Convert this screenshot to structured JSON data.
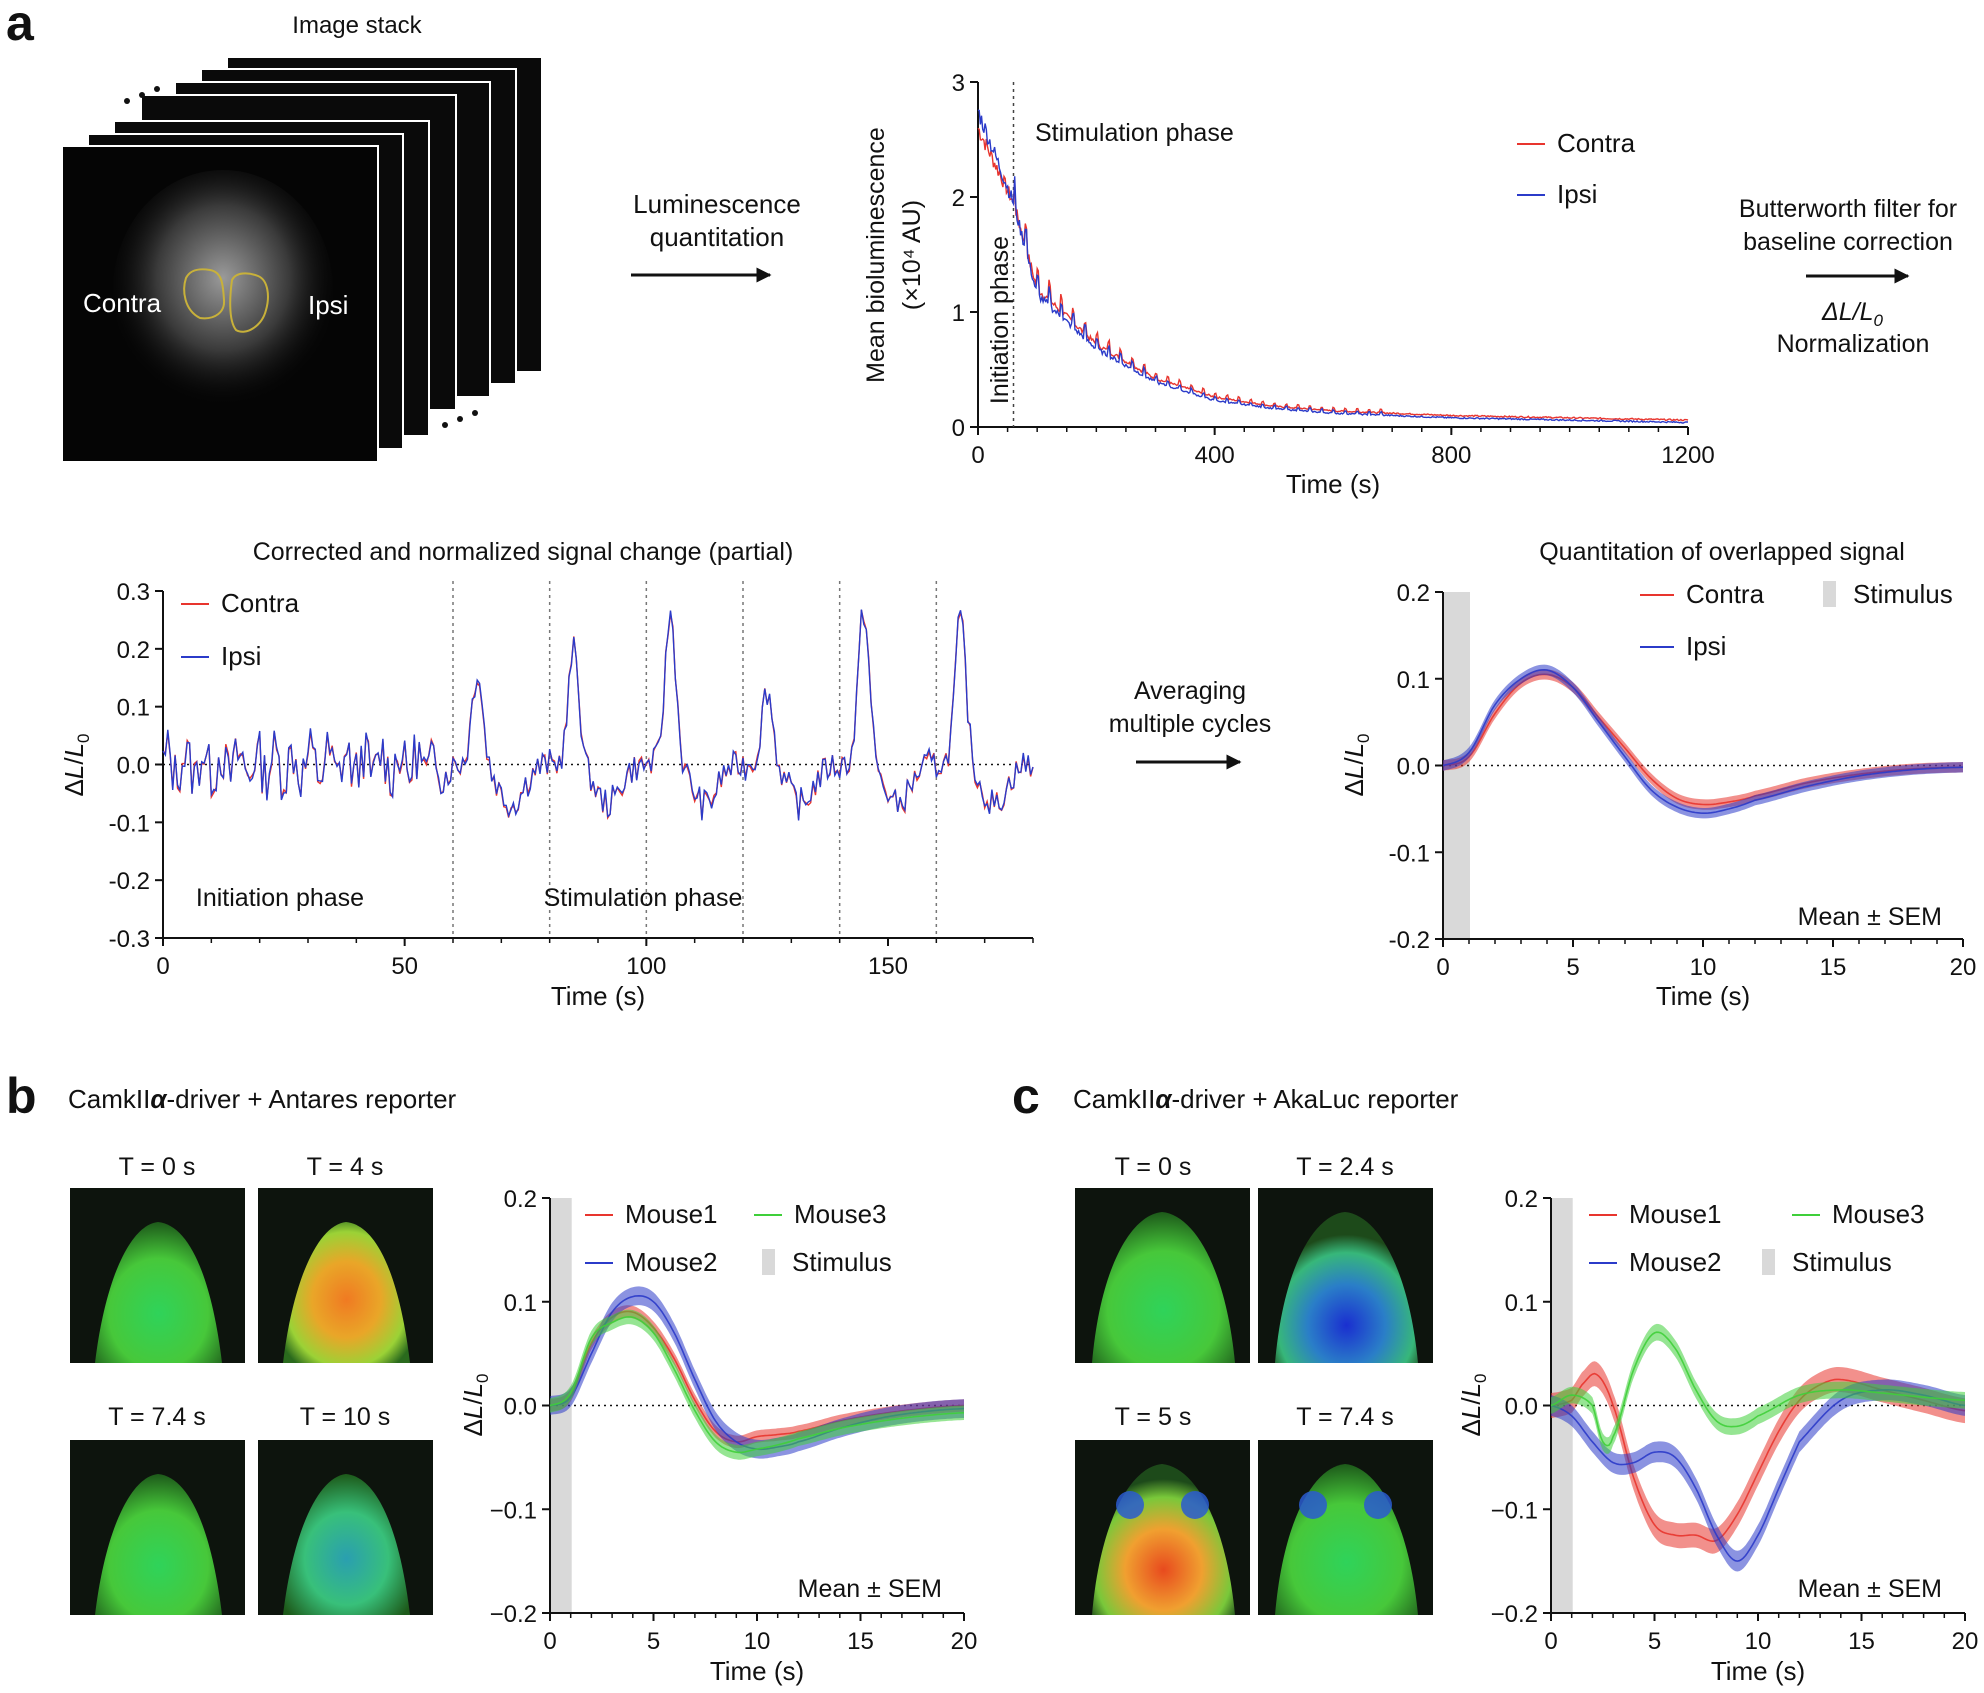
{
  "panel_a": {
    "letter": "a",
    "stack_title": "Image stack",
    "roi_left": "Contra",
    "roi_right": "Ipsi",
    "arrow1_text": [
      "Luminescence",
      "quantitation"
    ],
    "arrow2_text": [
      "Butterworth filter for",
      "baseline correction"
    ],
    "arrow2_norm_symbol": "ΔL/L",
    "arrow2_norm_sub": "0",
    "arrow2_norm_text": "Normalization",
    "arrow3_text": [
      "Averaging",
      "multiple cycles"
    ]
  },
  "panel_b": {
    "letter": "b",
    "title_pre": "CamkII",
    "title_alpha": "α",
    "title_post": "-driver + Antares reporter",
    "thumb_labels": [
      "T = 0 s",
      "T = 4 s",
      "T = 7.4 s",
      "T = 10 s"
    ]
  },
  "panel_c": {
    "letter": "c",
    "title_pre": "CamkII",
    "title_alpha": "α",
    "title_post": "-driver + AkaLuc reporter",
    "thumb_labels": [
      "T = 0 s",
      "T = 2.4 s",
      "T = 5 s",
      "T = 7.4 s"
    ]
  },
  "colors": {
    "contra": "#e8352e",
    "ipsi": "#2b3bc9",
    "mouse1": "#e8352e",
    "mouse2": "#2b3bc9",
    "mouse3": "#3fcf3a",
    "stimulus": "#d9d9d9"
  },
  "chart_data": [
    {
      "id": "raw",
      "type": "line",
      "title": "",
      "xlabel": "Time (s)",
      "ylabel": "Mean bioluminescence",
      "ylabel2": "(×10⁴ AU)",
      "xlim": [
        0,
        1200
      ],
      "ylim": [
        0,
        3
      ],
      "xticks": [
        0,
        400,
        800,
        1200
      ],
      "yticks": [
        0,
        1,
        2,
        3
      ],
      "vline": 60,
      "annotations": [
        "Stimulation phase",
        "Initiation phase"
      ],
      "legend": "top-right",
      "series": [
        {
          "name": "Contra",
          "color_key": "contra",
          "x": [
            0,
            60,
            100,
            200,
            300,
            400,
            500,
            600,
            800,
            1000,
            1200
          ],
          "y": [
            2.6,
            1.95,
            1.2,
            0.72,
            0.42,
            0.26,
            0.18,
            0.14,
            0.1,
            0.08,
            0.06
          ]
        },
        {
          "name": "Ipsi",
          "color_key": "ipsi",
          "x": [
            0,
            60,
            100,
            200,
            300,
            400,
            500,
            600,
            800,
            1000,
            1200
          ],
          "y": [
            2.75,
            1.95,
            1.15,
            0.68,
            0.39,
            0.23,
            0.16,
            0.12,
            0.08,
            0.06,
            0.04
          ]
        }
      ]
    },
    {
      "id": "partial",
      "type": "line",
      "title": "Corrected and normalized signal change (partial)",
      "xlabel": "Time (s)",
      "ylabel": "ΔL/L0",
      "xlim": [
        0,
        180
      ],
      "ylim": [
        -0.3,
        0.3
      ],
      "xticks": [
        0,
        50,
        100,
        150
      ],
      "yticks": [
        -0.3,
        -0.2,
        -0.1,
        0.0,
        0.1,
        0.2,
        0.3
      ],
      "ytick_labels": [
        "-0.3",
        "-0.2",
        "-0.1",
        "0.0",
        "0.1",
        "0.2",
        "0.3"
      ],
      "vlines": [
        60,
        80,
        100,
        120,
        140,
        160
      ],
      "zero_line": true,
      "annotations": [
        "Initiation phase",
        "Stimulation phase"
      ],
      "legend": "top-left",
      "cycle_peaks": [
        0.16,
        0.2,
        0.26,
        0.13,
        0.27,
        0.25
      ],
      "series": [
        {
          "name": "Contra",
          "color_key": "contra"
        },
        {
          "name": "Ipsi",
          "color_key": "ipsi"
        }
      ]
    },
    {
      "id": "avg",
      "type": "line",
      "title": "Quantitation of overlapped signal",
      "xlabel": "Time (s)",
      "ylabel": "ΔL/L0",
      "xlim": [
        0,
        20
      ],
      "ylim": [
        -0.2,
        0.2
      ],
      "xticks": [
        0,
        5,
        10,
        15,
        20
      ],
      "yticks": [
        -0.2,
        -0.1,
        0.0,
        0.1,
        0.2
      ],
      "ytick_labels": [
        "-0.2",
        "-0.1",
        "0.0",
        "0.1",
        "0.2"
      ],
      "stimulus": [
        0,
        1
      ],
      "stimulus_label": "Stimulus",
      "zero_line": true,
      "note": "Mean ± SEM",
      "legend": "top-right",
      "series": [
        {
          "name": "Contra",
          "color_key": "contra",
          "sem": 0.006,
          "x": [
            0,
            1,
            2,
            3,
            4,
            5,
            6,
            7,
            8,
            9,
            10,
            11,
            12,
            14,
            16,
            18,
            20
          ],
          "y": [
            0,
            0.01,
            0.06,
            0.095,
            0.105,
            0.09,
            0.055,
            0.02,
            -0.015,
            -0.038,
            -0.045,
            -0.042,
            -0.035,
            -0.02,
            -0.01,
            -0.004,
            -0.002
          ]
        },
        {
          "name": "Ipsi",
          "color_key": "ipsi",
          "sem": 0.006,
          "x": [
            0,
            1,
            2,
            3,
            4,
            5,
            6,
            7,
            8,
            9,
            10,
            11,
            12,
            14,
            16,
            18,
            20
          ],
          "y": [
            0,
            0.015,
            0.07,
            0.1,
            0.11,
            0.09,
            0.05,
            0.01,
            -0.028,
            -0.048,
            -0.055,
            -0.05,
            -0.04,
            -0.024,
            -0.012,
            -0.005,
            -0.002
          ]
        }
      ]
    },
    {
      "id": "antares",
      "type": "line",
      "title": "",
      "xlabel": "Time (s)",
      "ylabel": "ΔL/L0",
      "xlim": [
        0,
        20
      ],
      "ylim": [
        -0.2,
        0.2
      ],
      "xticks": [
        0,
        5,
        10,
        15,
        20
      ],
      "yticks": [
        -0.2,
        -0.1,
        0.0,
        0.1,
        0.2
      ],
      "ytick_labels": [
        "−0.2",
        "−0.1",
        "0.0",
        "0.1",
        "0.2"
      ],
      "stimulus": [
        0,
        1
      ],
      "stimulus_label": "Stimulus",
      "zero_line": true,
      "note": "Mean ± SEM",
      "legend": "top",
      "series": [
        {
          "name": "Mouse1",
          "color_key": "mouse1",
          "sem": 0.006,
          "x": [
            0,
            1,
            2,
            3,
            4,
            5,
            6,
            7,
            8,
            9,
            10,
            11,
            12,
            14,
            16,
            18,
            20
          ],
          "y": [
            0,
            0.01,
            0.06,
            0.085,
            0.09,
            0.075,
            0.045,
            0.005,
            -0.025,
            -0.035,
            -0.03,
            -0.028,
            -0.025,
            -0.015,
            -0.008,
            -0.003,
            0.0
          ]
        },
        {
          "name": "Mouse2",
          "color_key": "mouse2",
          "sem": 0.009,
          "x": [
            0,
            1,
            2,
            3,
            4,
            5,
            6,
            7,
            8,
            9,
            10,
            11,
            12,
            14,
            16,
            18,
            20
          ],
          "y": [
            0,
            0.008,
            0.05,
            0.09,
            0.105,
            0.1,
            0.07,
            0.025,
            -0.015,
            -0.035,
            -0.042,
            -0.04,
            -0.035,
            -0.022,
            -0.012,
            -0.006,
            -0.003
          ]
        },
        {
          "name": "Mouse3",
          "color_key": "mouse3",
          "sem": 0.007,
          "x": [
            0,
            1,
            2,
            3,
            4,
            5,
            6,
            7,
            8,
            9,
            10,
            11,
            12,
            14,
            16,
            18,
            20
          ],
          "y": [
            0,
            0.012,
            0.065,
            0.08,
            0.085,
            0.07,
            0.035,
            -0.005,
            -0.035,
            -0.045,
            -0.042,
            -0.038,
            -0.032,
            -0.022,
            -0.015,
            -0.01,
            -0.007
          ]
        }
      ]
    },
    {
      "id": "akaluc",
      "type": "line",
      "title": "",
      "xlabel": "Time (s)",
      "ylabel": "ΔL/L0",
      "xlim": [
        0,
        20
      ],
      "ylim": [
        -0.2,
        0.2
      ],
      "xticks": [
        0,
        5,
        10,
        15,
        20
      ],
      "yticks": [
        -0.2,
        -0.1,
        0.0,
        0.1,
        0.2
      ],
      "ytick_labels": [
        "−0.2",
        "−0.1",
        "0.0",
        "0.1",
        "0.2"
      ],
      "stimulus": [
        0,
        1
      ],
      "stimulus_label": "Stimulus",
      "zero_line": true,
      "note": "Mean ± SEM",
      "legend": "top",
      "series": [
        {
          "name": "Mouse1",
          "color_key": "mouse1",
          "sem": 0.012,
          "x": [
            0,
            1,
            1.5,
            2.2,
            3,
            4,
            5,
            6,
            7,
            8,
            9,
            10,
            11,
            12,
            13,
            14,
            16,
            18,
            20
          ],
          "y": [
            0,
            0.005,
            0.02,
            0.03,
            0.0,
            -0.07,
            -0.115,
            -0.125,
            -0.125,
            -0.13,
            -0.105,
            -0.065,
            -0.025,
            0.005,
            0.02,
            0.025,
            0.015,
            0.005,
            -0.005
          ]
        },
        {
          "name": "Mouse2",
          "color_key": "mouse2",
          "sem": 0.01,
          "x": [
            0,
            1,
            2,
            3,
            4,
            5,
            6,
            7,
            8,
            9,
            10,
            11,
            12,
            14,
            16,
            18,
            20
          ],
          "y": [
            0,
            -0.01,
            -0.035,
            -0.055,
            -0.055,
            -0.045,
            -0.05,
            -0.08,
            -0.125,
            -0.15,
            -0.125,
            -0.08,
            -0.035,
            0.005,
            0.015,
            0.01,
            0.0
          ]
        },
        {
          "name": "Mouse3",
          "color_key": "mouse3",
          "sem": 0.008,
          "x": [
            0,
            1,
            2,
            2.5,
            3,
            4,
            5,
            6,
            7,
            8,
            9,
            10,
            12,
            14,
            16,
            18,
            20
          ],
          "y": [
            0,
            0.01,
            0.0,
            -0.035,
            -0.03,
            0.035,
            0.07,
            0.055,
            0.015,
            -0.015,
            -0.02,
            -0.01,
            0.01,
            0.015,
            0.012,
            0.008,
            0.005
          ]
        }
      ]
    }
  ]
}
